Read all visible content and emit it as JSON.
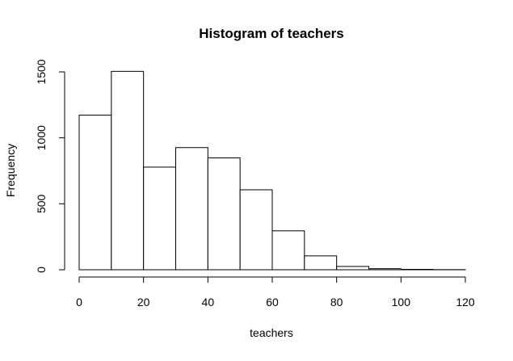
{
  "chart_data": {
    "type": "bar",
    "title": "Histogram of teachers",
    "xlabel": "teachers",
    "ylabel": "Frequency",
    "bins": [
      [
        0,
        10
      ],
      [
        10,
        20
      ],
      [
        20,
        30
      ],
      [
        30,
        40
      ],
      [
        40,
        50
      ],
      [
        50,
        60
      ],
      [
        60,
        70
      ],
      [
        70,
        80
      ],
      [
        80,
        90
      ],
      [
        90,
        100
      ],
      [
        100,
        110
      ],
      [
        110,
        120
      ]
    ],
    "values": [
      1172,
      1504,
      778,
      926,
      848,
      606,
      295,
      105,
      25,
      8,
      3,
      1
    ],
    "xlim": [
      0,
      120
    ],
    "ylim": [
      0,
      1500
    ],
    "x_ticks": [
      0,
      20,
      40,
      60,
      80,
      100,
      120
    ],
    "y_ticks": [
      0,
      500,
      1000,
      1500
    ],
    "x_tick_labels": [
      "0",
      "20",
      "40",
      "60",
      "80",
      "100",
      "120"
    ],
    "y_tick_labels": [
      "0",
      "500",
      "1000",
      "1500"
    ],
    "bar_fill": "#ffffff",
    "bar_stroke": "#000000",
    "grid": false,
    "legend": "none"
  }
}
